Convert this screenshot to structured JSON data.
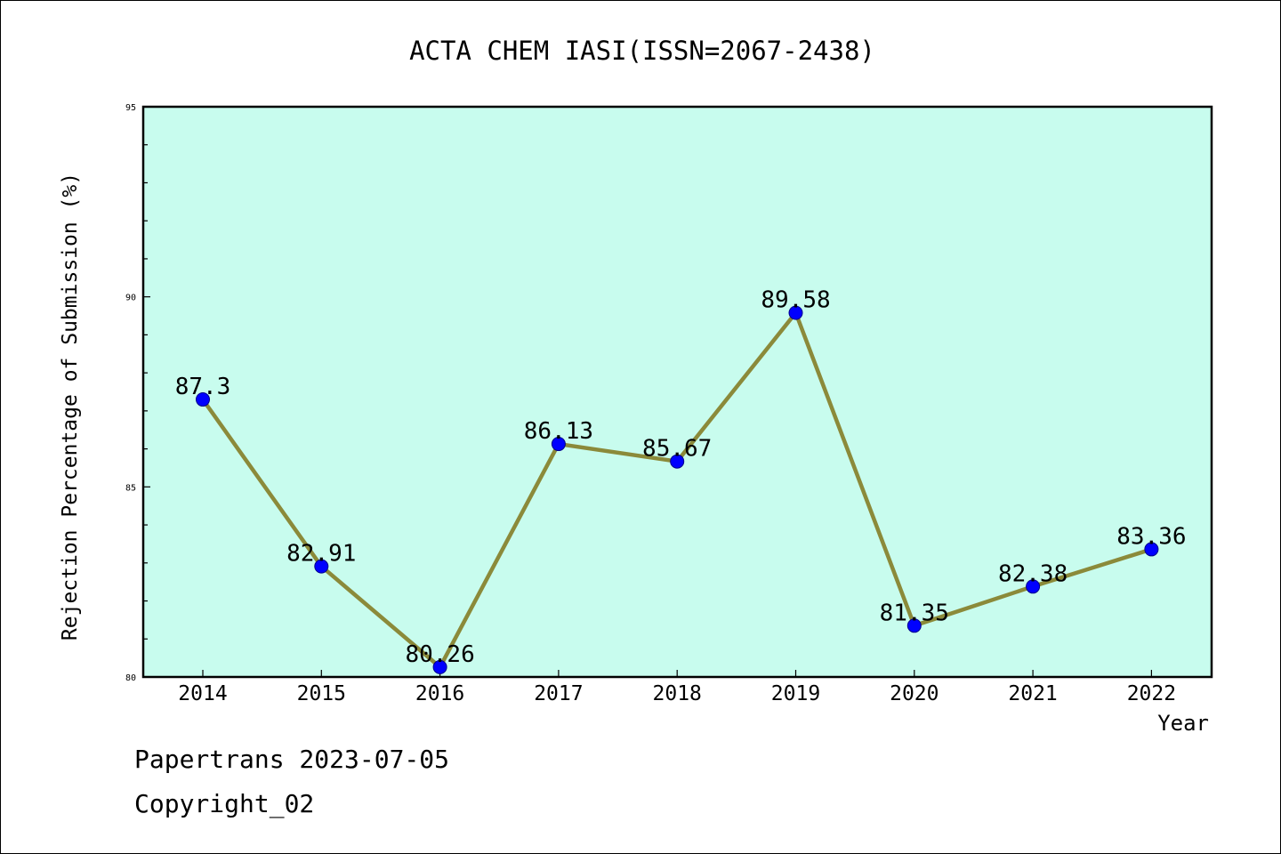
{
  "chart_data": {
    "type": "line",
    "title": "ACTA CHEM IASI(ISSN=2067-2438)",
    "xlabel": "Year",
    "ylabel": "Rejection Percentage of Submission (%)",
    "categories": [
      "2014",
      "2015",
      "2016",
      "2017",
      "2018",
      "2019",
      "2020",
      "2021",
      "2022"
    ],
    "values": [
      87.3,
      82.91,
      80.26,
      86.13,
      85.67,
      89.58,
      81.35,
      82.38,
      83.36
    ],
    "data_labels": [
      "87.3",
      "82.91",
      "80.26",
      "86.13",
      "85.67",
      "89.58",
      "81.35",
      "82.38",
      "83.36"
    ],
    "ylim": [
      80,
      95
    ],
    "yticks": [
      80,
      85,
      90,
      95
    ],
    "grid": false,
    "legend": "none",
    "colors": {
      "plot_background": "#c8fcee",
      "line": "#8b8a3a",
      "marker": "#0000ff"
    }
  },
  "footer": {
    "line1": "Papertrans 2023-07-05",
    "line2": "Copyright_02"
  }
}
